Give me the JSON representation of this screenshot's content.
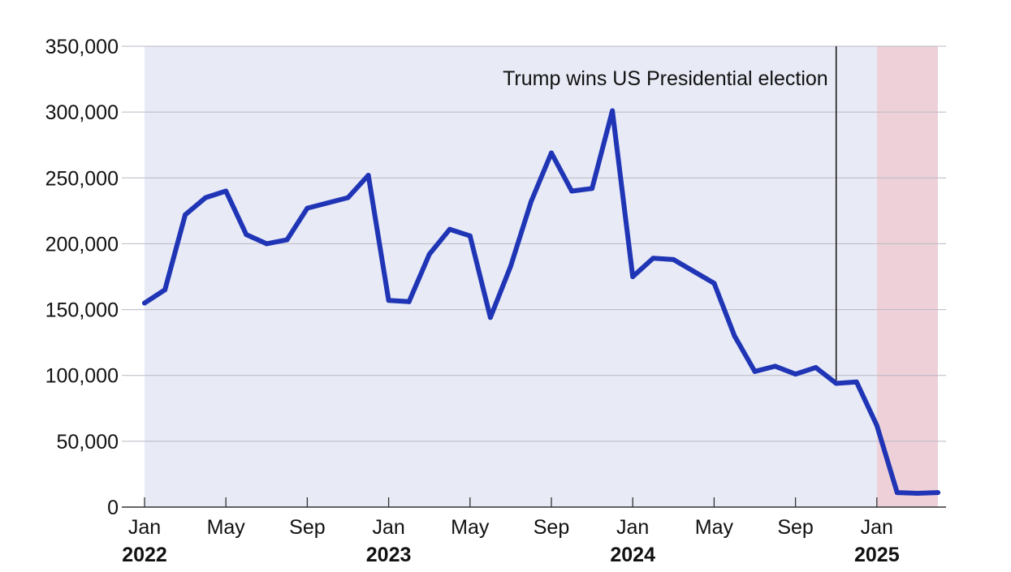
{
  "chart_data": {
    "type": "line",
    "title": "",
    "xlabel": "",
    "ylabel": "",
    "ylim": [
      0,
      350000
    ],
    "grid": true,
    "start_month": "2022-01",
    "x": [
      "2022-01",
      "2022-02",
      "2022-03",
      "2022-04",
      "2022-05",
      "2022-06",
      "2022-07",
      "2022-08",
      "2022-09",
      "2022-10",
      "2022-11",
      "2022-12",
      "2023-01",
      "2023-02",
      "2023-03",
      "2023-04",
      "2023-05",
      "2023-06",
      "2023-07",
      "2023-08",
      "2023-09",
      "2023-10",
      "2023-11",
      "2023-12",
      "2024-01",
      "2024-02",
      "2024-03",
      "2024-04",
      "2024-05",
      "2024-06",
      "2024-07",
      "2024-08",
      "2024-09",
      "2024-10",
      "2024-11",
      "2024-12",
      "2025-01",
      "2025-02",
      "2025-03",
      "2025-04"
    ],
    "values": [
      155000,
      165000,
      222000,
      235000,
      240000,
      207000,
      200000,
      203000,
      227000,
      231000,
      235000,
      252000,
      157000,
      156000,
      192000,
      211000,
      206000,
      144000,
      183000,
      232000,
      269000,
      240000,
      242000,
      301000,
      175000,
      189000,
      188000,
      179000,
      170000,
      130000,
      103000,
      107000,
      101000,
      106000,
      94000,
      95000,
      62000,
      11000,
      10500,
      11000
    ],
    "line_color": "#1f35b5",
    "yticks": [
      {
        "value": 0,
        "label": "0"
      },
      {
        "value": 50000,
        "label": "50,000"
      },
      {
        "value": 100000,
        "label": "100,000"
      },
      {
        "value": 150000,
        "label": "150,000"
      },
      {
        "value": 200000,
        "label": "200,000"
      },
      {
        "value": 250000,
        "label": "250,000"
      },
      {
        "value": 300000,
        "label": "300,000"
      },
      {
        "value": 350000,
        "label": "350,000"
      }
    ],
    "xticks": [
      {
        "x": "2022-01",
        "label": "Jan",
        "year": "2022"
      },
      {
        "x": "2022-05",
        "label": "May"
      },
      {
        "x": "2022-09",
        "label": "Sep"
      },
      {
        "x": "2023-01",
        "label": "Jan",
        "year": "2023"
      },
      {
        "x": "2023-05",
        "label": "May"
      },
      {
        "x": "2023-09",
        "label": "Sep"
      },
      {
        "x": "2024-01",
        "label": "Jan",
        "year": "2024"
      },
      {
        "x": "2024-05",
        "label": "May"
      },
      {
        "x": "2024-09",
        "label": "Sep"
      },
      {
        "x": "2025-01",
        "label": "Jan",
        "year": "2025"
      }
    ],
    "shaded_regions": [
      {
        "from": "2022-01",
        "to": "2025-01",
        "color": "#e8eaf6"
      },
      {
        "from": "2025-01",
        "to": "2025-04",
        "color": "#eed1d8"
      }
    ],
    "annotations": [
      {
        "x": "2024-11",
        "text": "Trump wins US Presidential election"
      }
    ]
  }
}
